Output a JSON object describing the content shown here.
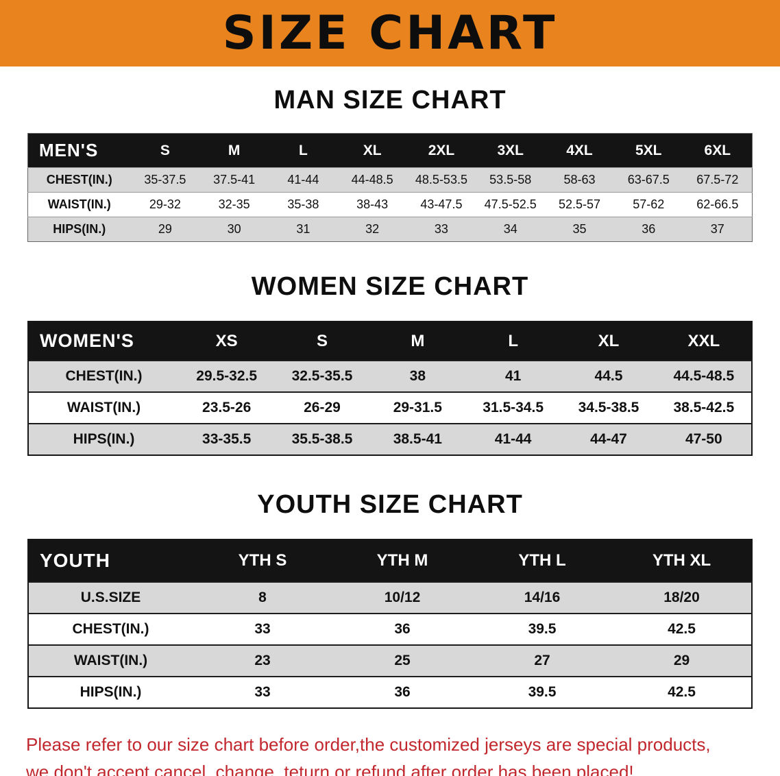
{
  "banner": {
    "title": "SIZE CHART",
    "bg_color": "#e8831e",
    "text_color": "#0d0d0d"
  },
  "colors": {
    "table_header_bg": "#141414",
    "table_header_text": "#ffffff",
    "row_alt_gray": "#d8d8d8",
    "disclaimer_red": "#c1272d"
  },
  "sections": [
    {
      "id": "men",
      "heading": "MAN SIZE CHART",
      "table": {
        "header_label": "MEN'S",
        "columns": [
          "S",
          "M",
          "L",
          "XL",
          "2XL",
          "3XL",
          "4XL",
          "5XL",
          "6XL"
        ],
        "rows": [
          {
            "label": "CHEST(IN.)",
            "values": [
              "35-37.5",
              "37.5-41",
              "41-44",
              "44-48.5",
              "48.5-53.5",
              "53.5-58",
              "58-63",
              "63-67.5",
              "67.5-72"
            ]
          },
          {
            "label": "WAIST(IN.)",
            "values": [
              "29-32",
              "32-35",
              "35-38",
              "38-43",
              "43-47.5",
              "47.5-52.5",
              "52.5-57",
              "57-62",
              "62-66.5"
            ]
          },
          {
            "label": "HIPS(IN.)",
            "values": [
              "29",
              "30",
              "31",
              "32",
              "33",
              "34",
              "35",
              "36",
              "37"
            ]
          }
        ]
      }
    },
    {
      "id": "women",
      "heading": "WOMEN SIZE CHART",
      "table": {
        "header_label": "WOMEN'S",
        "columns": [
          "XS",
          "S",
          "M",
          "L",
          "XL",
          "XXL"
        ],
        "rows": [
          {
            "label": "CHEST(IN.)",
            "values": [
              "29.5-32.5",
              "32.5-35.5",
              "38",
              "41",
              "44.5",
              "44.5-48.5"
            ]
          },
          {
            "label": "WAIST(IN.)",
            "values": [
              "23.5-26",
              "26-29",
              "29-31.5",
              "31.5-34.5",
              "34.5-38.5",
              "38.5-42.5"
            ]
          },
          {
            "label": "HIPS(IN.)",
            "values": [
              "33-35.5",
              "35.5-38.5",
              "38.5-41",
              "41-44",
              "44-47",
              "47-50"
            ]
          }
        ]
      }
    },
    {
      "id": "youth",
      "heading": "YOUTH SIZE CHART",
      "table": {
        "header_label": "YOUTH",
        "columns": [
          "YTH S",
          "YTH M",
          "YTH L",
          "YTH XL"
        ],
        "rows": [
          {
            "label": "U.S.SIZE",
            "values": [
              "8",
              "10/12",
              "14/16",
              "18/20"
            ]
          },
          {
            "label": "CHEST(IN.)",
            "values": [
              "33",
              "36",
              "39.5",
              "42.5"
            ]
          },
          {
            "label": "WAIST(IN.)",
            "values": [
              "23",
              "25",
              "27",
              "29"
            ]
          },
          {
            "label": "HIPS(IN.)",
            "values": [
              "33",
              "36",
              "39.5",
              "42.5"
            ]
          }
        ]
      }
    }
  ],
  "disclaimer": {
    "lines": [
      "Please refer to our size chart before order,the customized jerseys are special products,",
      "we don't accept cancel, change, teturn or refund after order has been placed!"
    ]
  }
}
